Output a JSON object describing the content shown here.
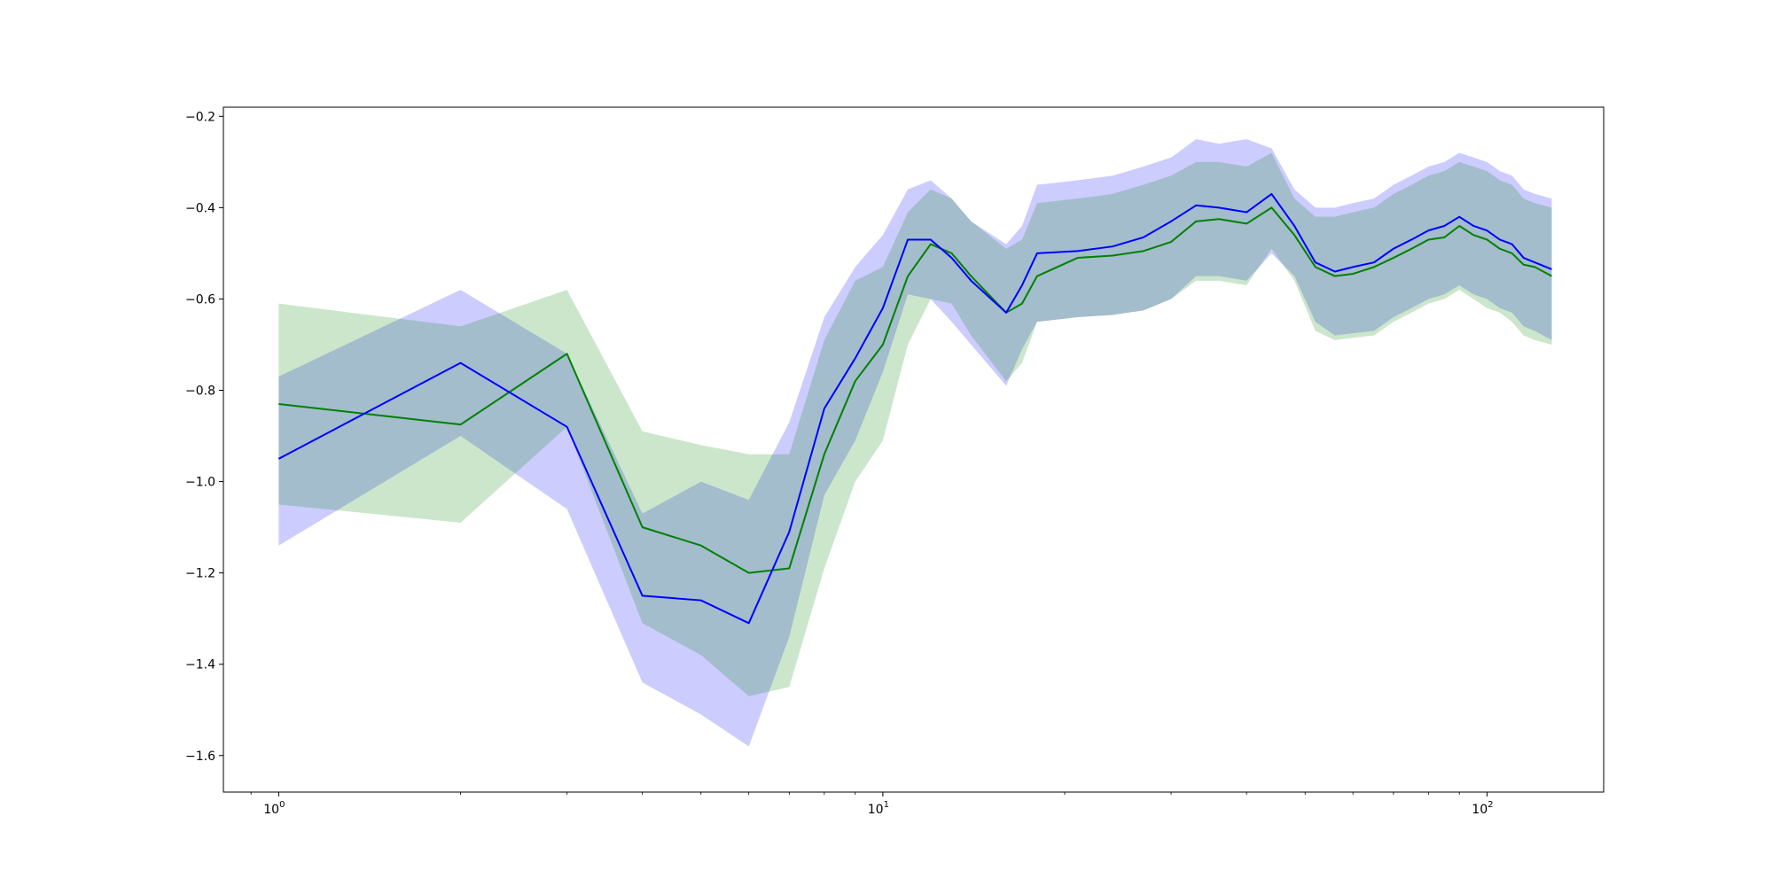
{
  "chart_data": {
    "type": "line",
    "title": "",
    "xlabel": "",
    "ylabel": "",
    "x_scale": "log",
    "xlim": [
      0.81,
      156
    ],
    "ylim": [
      -1.68,
      -0.18
    ],
    "grid": false,
    "legend": "none",
    "x_ticks": [
      {
        "base": "10",
        "exp": "0",
        "value": 1
      },
      {
        "base": "10",
        "exp": "1",
        "value": 10
      },
      {
        "base": "10",
        "exp": "2",
        "value": 100
      }
    ],
    "y_ticks": [
      {
        "label": "−1.6",
        "value": -1.6
      },
      {
        "label": "−1.4",
        "value": -1.4
      },
      {
        "label": "−1.2",
        "value": -1.2
      },
      {
        "label": "−1.0",
        "value": -1.0
      },
      {
        "label": "−0.8",
        "value": -0.8
      },
      {
        "label": "−0.6",
        "value": -0.6
      },
      {
        "label": "−0.4",
        "value": -0.4
      },
      {
        "label": "−0.2",
        "value": -0.2
      }
    ],
    "x": [
      1,
      2,
      3,
      4,
      5,
      6,
      7,
      8,
      9,
      10,
      11,
      12,
      13,
      14,
      16,
      17,
      18,
      21,
      24,
      27,
      30,
      33,
      36,
      40,
      44,
      48,
      52,
      56,
      60,
      65,
      70,
      75,
      80,
      85,
      90,
      95,
      100,
      105,
      110,
      115,
      120,
      128
    ],
    "series": [
      {
        "color": "#0000ff",
        "band_color": "#0000ff",
        "band_opacity": 0.2,
        "mean": [
          -0.95,
          -0.74,
          -0.88,
          -1.25,
          -1.26,
          -1.31,
          -1.11,
          -0.84,
          -0.73,
          -0.62,
          -0.47,
          -0.47,
          -0.51,
          -0.56,
          -0.63,
          -0.57,
          -0.5,
          -0.495,
          -0.485,
          -0.465,
          -0.43,
          -0.395,
          -0.4,
          -0.41,
          -0.37,
          -0.44,
          -0.52,
          -0.54,
          -0.53,
          -0.52,
          -0.49,
          -0.47,
          -0.45,
          -0.44,
          -0.42,
          -0.44,
          -0.45,
          -0.47,
          -0.48,
          -0.51,
          -0.52,
          -0.535
        ],
        "upper": [
          -0.77,
          -0.58,
          -0.72,
          -1.07,
          -1.0,
          -1.04,
          -0.87,
          -0.64,
          -0.53,
          -0.46,
          -0.36,
          -0.34,
          -0.38,
          -0.43,
          -0.48,
          -0.44,
          -0.35,
          -0.34,
          -0.33,
          -0.31,
          -0.29,
          -0.25,
          -0.26,
          -0.25,
          -0.27,
          -0.36,
          -0.4,
          -0.4,
          -0.39,
          -0.38,
          -0.35,
          -0.33,
          -0.31,
          -0.3,
          -0.28,
          -0.29,
          -0.3,
          -0.32,
          -0.33,
          -0.36,
          -0.37,
          -0.38
        ],
        "lower": [
          -1.14,
          -0.9,
          -1.06,
          -1.44,
          -1.51,
          -1.58,
          -1.34,
          -1.03,
          -0.91,
          -0.76,
          -0.59,
          -0.6,
          -0.65,
          -0.7,
          -0.79,
          -0.71,
          -0.65,
          -0.64,
          -0.635,
          -0.625,
          -0.6,
          -0.55,
          -0.55,
          -0.56,
          -0.5,
          -0.55,
          -0.65,
          -0.68,
          -0.675,
          -0.67,
          -0.64,
          -0.62,
          -0.6,
          -0.59,
          -0.57,
          -0.59,
          -0.6,
          -0.62,
          -0.63,
          -0.66,
          -0.67,
          -0.69
        ]
      },
      {
        "color": "#008000",
        "band_color": "#008000",
        "band_opacity": 0.2,
        "mean": [
          -0.83,
          -0.875,
          -0.72,
          -1.1,
          -1.14,
          -1.2,
          -1.19,
          -0.94,
          -0.78,
          -0.7,
          -0.55,
          -0.48,
          -0.5,
          -0.55,
          -0.63,
          -0.61,
          -0.55,
          -0.51,
          -0.505,
          -0.495,
          -0.475,
          -0.43,
          -0.425,
          -0.435,
          -0.4,
          -0.46,
          -0.53,
          -0.55,
          -0.545,
          -0.53,
          -0.51,
          -0.49,
          -0.47,
          -0.465,
          -0.44,
          -0.46,
          -0.47,
          -0.49,
          -0.5,
          -0.525,
          -0.53,
          -0.55
        ],
        "upper": [
          -0.61,
          -0.66,
          -0.58,
          -0.89,
          -0.92,
          -0.94,
          -0.94,
          -0.69,
          -0.56,
          -0.53,
          -0.41,
          -0.36,
          -0.38,
          -0.43,
          -0.49,
          -0.47,
          -0.39,
          -0.38,
          -0.37,
          -0.35,
          -0.33,
          -0.3,
          -0.3,
          -0.31,
          -0.28,
          -0.38,
          -0.42,
          -0.42,
          -0.41,
          -0.4,
          -0.37,
          -0.35,
          -0.33,
          -0.32,
          -0.3,
          -0.31,
          -0.32,
          -0.34,
          -0.35,
          -0.38,
          -0.39,
          -0.4
        ],
        "lower": [
          -1.05,
          -1.09,
          -0.88,
          -1.31,
          -1.38,
          -1.47,
          -1.45,
          -1.19,
          -1.0,
          -0.91,
          -0.7,
          -0.6,
          -0.61,
          -0.68,
          -0.78,
          -0.74,
          -0.65,
          -0.64,
          -0.635,
          -0.625,
          -0.6,
          -0.56,
          -0.56,
          -0.57,
          -0.49,
          -0.56,
          -0.67,
          -0.69,
          -0.685,
          -0.68,
          -0.65,
          -0.63,
          -0.61,
          -0.6,
          -0.58,
          -0.6,
          -0.62,
          -0.63,
          -0.65,
          -0.68,
          -0.69,
          -0.7
        ]
      }
    ]
  }
}
